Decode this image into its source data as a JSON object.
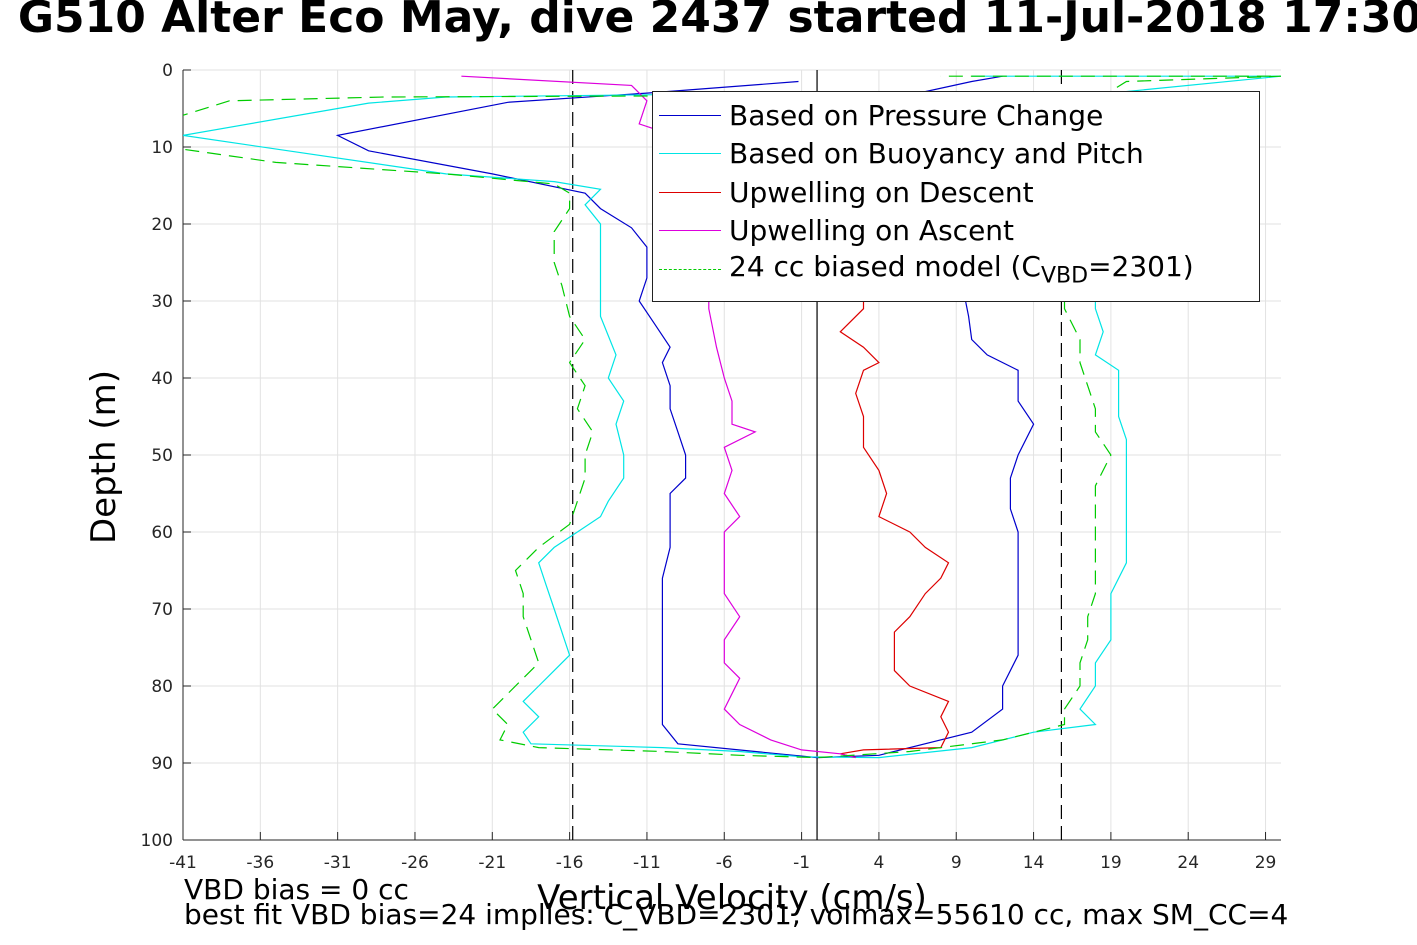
{
  "title": "G510 Alter Eco May, dive 2437 started 11-Jul-2018 17:30",
  "footer": {
    "line1": "VBD bias = 0 cc",
    "line2": "best fit VBD bias=24 implies: C_VBD=2301, volmax=55610 cc, max SM_CC=4"
  },
  "chart_data": {
    "type": "line",
    "xlabel": "Vertical Velocity (cm/s)",
    "ylabel": "Depth (m)",
    "xlim": [
      -41,
      30
    ],
    "ylim": [
      0,
      100
    ],
    "y_reversed": true,
    "grid": true,
    "legend_position": "top-right",
    "xticks": [
      -41,
      -36,
      -31,
      -26,
      -21,
      -16,
      -11,
      -6,
      -1,
      4,
      9,
      14,
      19,
      24,
      29
    ],
    "yticks": [
      0,
      10,
      20,
      30,
      40,
      50,
      60,
      70,
      80,
      90,
      100
    ],
    "reference_lines": {
      "solid_x": [
        0
      ],
      "dashed_x": [
        -15.8,
        15.8
      ]
    },
    "series": [
      {
        "name": "Based on Pressure Change",
        "color": "#0000cc",
        "dash": "solid",
        "points": [
          [
            -1.2,
            1.5
          ],
          [
            -11,
            3
          ],
          [
            -20,
            4.2
          ],
          [
            -31,
            8.5
          ],
          [
            -29,
            10.5
          ],
          [
            -21,
            13.5
          ],
          [
            -15,
            16
          ],
          [
            -14,
            18
          ],
          [
            -12,
            20.5
          ],
          [
            -11,
            23
          ],
          [
            -11,
            27
          ],
          [
            -11.5,
            30
          ],
          [
            -10.5,
            33
          ],
          [
            -9.5,
            36
          ],
          [
            -10,
            38
          ],
          [
            -9.5,
            41
          ],
          [
            -9.5,
            44
          ],
          [
            -9,
            47
          ],
          [
            -8.5,
            50
          ],
          [
            -8.5,
            53
          ],
          [
            -9.5,
            55
          ],
          [
            -9.5,
            59
          ],
          [
            -9.5,
            62
          ],
          [
            -10,
            66
          ],
          [
            -10,
            70
          ],
          [
            -10,
            74
          ],
          [
            -10,
            78
          ],
          [
            -10,
            82
          ],
          [
            -10,
            85
          ],
          [
            -9,
            87.5
          ],
          [
            -4,
            88.5
          ],
          [
            0,
            89.3
          ],
          [
            4,
            89
          ],
          [
            10,
            86
          ],
          [
            12,
            83
          ],
          [
            12,
            80
          ],
          [
            13,
            76
          ],
          [
            13,
            72
          ],
          [
            13,
            68
          ],
          [
            13,
            64
          ],
          [
            13,
            60
          ],
          [
            12.5,
            57
          ],
          [
            12.5,
            53
          ],
          [
            13,
            50
          ],
          [
            14,
            46
          ],
          [
            13,
            43
          ],
          [
            13,
            39
          ],
          [
            11,
            37
          ],
          [
            10,
            35
          ],
          [
            9.8,
            32
          ],
          [
            9.5,
            29
          ],
          [
            10,
            25
          ],
          [
            9,
            20
          ],
          [
            7,
            15
          ],
          [
            4,
            10
          ],
          [
            2,
            5
          ],
          [
            10,
            1.5
          ],
          [
            12,
            0.8
          ]
        ]
      },
      {
        "name": "Based on Buoyancy and Pitch",
        "color": "#00e5e5",
        "dash": "solid",
        "points": [
          [
            -1,
            3
          ],
          [
            -24,
            3.5
          ],
          [
            -29,
            4.3
          ],
          [
            -41,
            8.5
          ],
          [
            -24,
            13.5
          ],
          [
            -17,
            14.5
          ],
          [
            -14,
            15.5
          ],
          [
            -15,
            17.5
          ],
          [
            -14,
            20
          ],
          [
            -14,
            24
          ],
          [
            -14,
            28
          ],
          [
            -14,
            32
          ],
          [
            -13,
            37
          ],
          [
            -13.5,
            40
          ],
          [
            -12.5,
            43
          ],
          [
            -13,
            46
          ],
          [
            -12.5,
            50
          ],
          [
            -12.5,
            53
          ],
          [
            -13.5,
            56
          ],
          [
            -14,
            58
          ],
          [
            -15.5,
            60
          ],
          [
            -17,
            62
          ],
          [
            -18,
            64
          ],
          [
            -17.5,
            67
          ],
          [
            -17,
            70
          ],
          [
            -16.5,
            73
          ],
          [
            -16,
            76
          ],
          [
            -17,
            78
          ],
          [
            -18,
            80
          ],
          [
            -19,
            82
          ],
          [
            -18,
            84
          ],
          [
            -19,
            86
          ],
          [
            -18.5,
            87.5
          ],
          [
            -10,
            88
          ],
          [
            -5,
            88.5
          ],
          [
            -1,
            89.2
          ],
          [
            4,
            89.3
          ],
          [
            10,
            88
          ],
          [
            14,
            86
          ],
          [
            18,
            85
          ],
          [
            17,
            83
          ],
          [
            18,
            80
          ],
          [
            18,
            77
          ],
          [
            19,
            74
          ],
          [
            19,
            71
          ],
          [
            19,
            68
          ],
          [
            20,
            64
          ],
          [
            20,
            60
          ],
          [
            20,
            56
          ],
          [
            20,
            51
          ],
          [
            20,
            48
          ],
          [
            19.5,
            45
          ],
          [
            19.5,
            42
          ],
          [
            19.5,
            39
          ],
          [
            18,
            37
          ],
          [
            18.5,
            34
          ],
          [
            18,
            31
          ],
          [
            18,
            28
          ],
          [
            17,
            25
          ],
          [
            17,
            20
          ],
          [
            17,
            15
          ],
          [
            18,
            8
          ],
          [
            19,
            3
          ],
          [
            30,
            0.8
          ],
          [
            10,
            0.8
          ]
        ]
      },
      {
        "name": "Upwelling on Descent",
        "color": "#dd0000",
        "dash": "solid",
        "points": [
          [
            2.5,
            89.3
          ],
          [
            1.5,
            88.8
          ],
          [
            3,
            88.3
          ],
          [
            8,
            88
          ],
          [
            8.5,
            86
          ],
          [
            8,
            84
          ],
          [
            8.5,
            82
          ],
          [
            6,
            80
          ],
          [
            5,
            78
          ],
          [
            5,
            75
          ],
          [
            5,
            73
          ],
          [
            6,
            71
          ],
          [
            7,
            68
          ],
          [
            8,
            66
          ],
          [
            8.5,
            64
          ],
          [
            7,
            62
          ],
          [
            6,
            60
          ],
          [
            4,
            58
          ],
          [
            4.5,
            55
          ],
          [
            4,
            52
          ],
          [
            3,
            49
          ],
          [
            3,
            45
          ],
          [
            2.5,
            42
          ],
          [
            3,
            39
          ],
          [
            4,
            38
          ],
          [
            3,
            36
          ],
          [
            1.5,
            34
          ],
          [
            3,
            31
          ],
          [
            3,
            28
          ],
          [
            4,
            24
          ],
          [
            4,
            19
          ],
          [
            4,
            14
          ],
          [
            5,
            10
          ]
        ]
      },
      {
        "name": "Upwelling on Ascent",
        "color": "#dd00dd",
        "dash": "solid",
        "points": [
          [
            -23,
            0.8
          ],
          [
            -12,
            2
          ],
          [
            -11,
            4
          ],
          [
            -11.5,
            7
          ],
          [
            -10,
            8
          ],
          [
            -8,
            12
          ],
          [
            -7,
            18
          ],
          [
            -7,
            25
          ],
          [
            -7,
            31
          ],
          [
            -6.5,
            36
          ],
          [
            -6,
            40
          ],
          [
            -5.5,
            43
          ],
          [
            -5.5,
            46
          ],
          [
            -4,
            47
          ],
          [
            -6,
            49
          ],
          [
            -5.5,
            52
          ],
          [
            -6,
            55
          ],
          [
            -5,
            58
          ],
          [
            -6,
            60
          ],
          [
            -6,
            64
          ],
          [
            -6,
            68
          ],
          [
            -5,
            71
          ],
          [
            -6,
            74
          ],
          [
            -6,
            77
          ],
          [
            -5,
            79
          ],
          [
            -5.5,
            81
          ],
          [
            -6,
            83
          ],
          [
            -5,
            85
          ],
          [
            -3,
            87
          ],
          [
            -1,
            88.3
          ],
          [
            1.5,
            88.8
          ],
          [
            2.5,
            89.3
          ]
        ]
      },
      {
        "name": "24 cc biased model (C_VBD=2301)",
        "color": "#00cc00",
        "dash": "dashed",
        "points": [
          [
            -1,
            3.3
          ],
          [
            -28,
            3.5
          ],
          [
            -38,
            4
          ],
          [
            -42,
            6.5
          ],
          [
            -42,
            10
          ],
          [
            -35,
            12
          ],
          [
            -24,
            13.5
          ],
          [
            -17,
            14.8
          ],
          [
            -16,
            16
          ],
          [
            -16,
            18
          ],
          [
            -17,
            21
          ],
          [
            -17,
            25
          ],
          [
            -16.5,
            28
          ],
          [
            -16,
            32
          ],
          [
            -15,
            35
          ],
          [
            -16,
            38
          ],
          [
            -15,
            41
          ],
          [
            -15.5,
            44
          ],
          [
            -14.5,
            47
          ],
          [
            -15,
            50
          ],
          [
            -15,
            53
          ],
          [
            -15.5,
            56
          ],
          [
            -16,
            59
          ],
          [
            -18,
            62
          ],
          [
            -19.5,
            65
          ],
          [
            -19,
            68
          ],
          [
            -19,
            71
          ],
          [
            -18.5,
            74
          ],
          [
            -18,
            77
          ],
          [
            -19,
            79
          ],
          [
            -20,
            81
          ],
          [
            -21,
            83
          ],
          [
            -20,
            85
          ],
          [
            -20.5,
            87
          ],
          [
            -18,
            88
          ],
          [
            -10,
            88.5
          ],
          [
            -5,
            89
          ],
          [
            0,
            89.3
          ],
          [
            6,
            88.5
          ],
          [
            12,
            87
          ],
          [
            16,
            85
          ],
          [
            16,
            83
          ],
          [
            17,
            80
          ],
          [
            17,
            77
          ],
          [
            17.5,
            74
          ],
          [
            17.5,
            71
          ],
          [
            18,
            68
          ],
          [
            18,
            64
          ],
          [
            18,
            60
          ],
          [
            18,
            57
          ],
          [
            18,
            54
          ],
          [
            19,
            50
          ],
          [
            18,
            47
          ],
          [
            18,
            44
          ],
          [
            17.5,
            41
          ],
          [
            17,
            38
          ],
          [
            17,
            35
          ],
          [
            16,
            31
          ],
          [
            16,
            27
          ],
          [
            16,
            23
          ],
          [
            16,
            18
          ],
          [
            17,
            10
          ],
          [
            18,
            4
          ],
          [
            20,
            1.5
          ],
          [
            30,
            0.8
          ],
          [
            8,
            0.8
          ]
        ]
      }
    ]
  }
}
